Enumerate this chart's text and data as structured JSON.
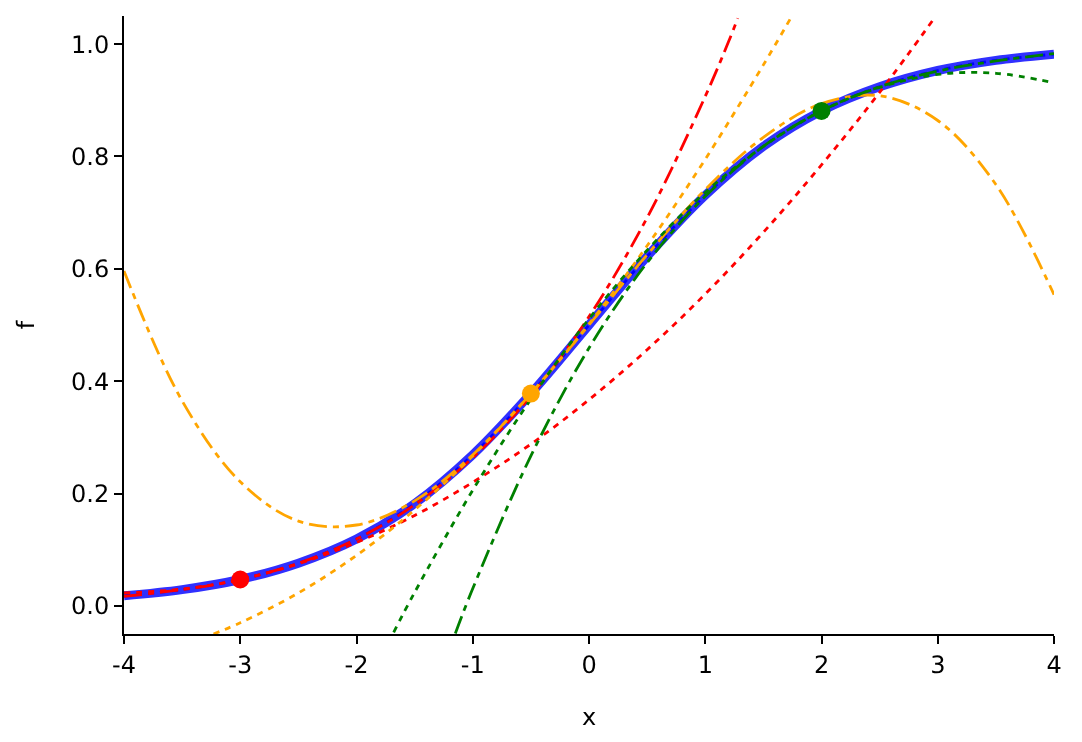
{
  "chart_data": {
    "type": "line",
    "xlabel": "x",
    "ylabel": "f",
    "xlim": [
      -4,
      4
    ],
    "ylim": [
      -0.05,
      1.05
    ],
    "xticks": [
      -4,
      -3,
      -2,
      -1,
      0,
      1,
      2,
      3,
      4
    ],
    "yticks": [
      {
        "value": 0,
        "label": "0.0"
      },
      {
        "value": 0.2,
        "label": "0.2"
      },
      {
        "value": 0.4,
        "label": "0.4"
      },
      {
        "value": 0.6,
        "label": "0.6"
      },
      {
        "value": 0.8,
        "label": "0.8"
      },
      {
        "value": 1,
        "label": "1.0"
      }
    ],
    "marker": "none",
    "series": [
      {
        "color": "#3030ff",
        "line_style": "solid",
        "x": [
          -4,
          -3.5,
          -3,
          -2.5,
          -2,
          -1.5,
          -1,
          -0.5,
          0,
          0.5,
          1,
          1.5,
          2,
          2.5,
          3,
          3.5,
          4
        ],
        "values": [
          0.018,
          0.029,
          0.047,
          0.076,
          0.119,
          0.182,
          0.269,
          0.378,
          0.5,
          0.622,
          0.731,
          0.818,
          0.881,
          0.924,
          0.953,
          0.971,
          0.982
        ]
      },
      {
        "color": "#0000ff",
        "line_style": "dotted",
        "x": [
          -4,
          -3.5,
          -3,
          -2.5,
          -2,
          -1.5,
          -1,
          -0.5,
          0,
          0.5,
          1,
          1.5,
          2,
          2.5,
          3,
          3.5,
          4
        ],
        "values": [
          0.018,
          0.029,
          0.047,
          0.076,
          0.119,
          0.182,
          0.269,
          0.378,
          0.5,
          0.622,
          0.731,
          0.818,
          0.881,
          0.924,
          0.953,
          0.971,
          0.982
        ]
      },
      {
        "color": "#ff0000",
        "line_style": "dotted",
        "x": [
          -4,
          -3.5,
          -3,
          -2.5,
          -2,
          -1.5,
          -1,
          -0.5,
          0,
          0.5,
          1,
          1.5,
          2,
          2.5,
          2.98
        ],
        "values": [
          0.023,
          0.03,
          0.047,
          0.075,
          0.113,
          0.161,
          0.22,
          0.288,
          0.367,
          0.456,
          0.555,
          0.665,
          0.785,
          0.914,
          1.049
        ]
      },
      {
        "color": "#ff0000",
        "line_style": "dashdot",
        "x": [
          -4,
          -3.5,
          -3,
          -2.5,
          -2,
          -1.5,
          -1,
          -0.5,
          0,
          0.5,
          1,
          1.2,
          1.28
        ],
        "values": [
          0.017,
          0.029,
          0.047,
          0.076,
          0.119,
          0.18,
          0.264,
          0.374,
          0.515,
          0.691,
          0.907,
          1.004,
          1.046
        ]
      },
      {
        "color": "#ffa500",
        "line_style": "dotted",
        "x": [
          -3.23,
          -3,
          -2.5,
          -2,
          -1.5,
          -1,
          -0.5,
          0,
          0.5,
          1,
          1.5,
          1.74
        ],
        "values": [
          -0.05,
          -0.03,
          0.023,
          0.09,
          0.171,
          0.267,
          0.378,
          0.502,
          0.641,
          0.795,
          0.963,
          1.048
        ]
      },
      {
        "color": "#ffa500",
        "line_style": "dashdot",
        "x": [
          -4,
          -3.5,
          -3,
          -2.5,
          -2,
          -1.5,
          -1,
          -0.5,
          0,
          0.5,
          1,
          1.5,
          2,
          2.5,
          3,
          3.5,
          4
        ],
        "values": [
          0.596,
          0.365,
          0.221,
          0.151,
          0.144,
          0.187,
          0.269,
          0.378,
          0.5,
          0.625,
          0.741,
          0.834,
          0.894,
          0.908,
          0.864,
          0.75,
          0.554
        ]
      },
      {
        "color": "#008000",
        "line_style": "dotted",
        "x": [
          -1.68,
          -1.5,
          -1,
          -0.5,
          0,
          0.5,
          1,
          1.5,
          2,
          2.5,
          3,
          3.5,
          4
        ],
        "values": [
          -0.047,
          0.024,
          0.206,
          0.368,
          0.511,
          0.633,
          0.736,
          0.818,
          0.881,
          0.923,
          0.946,
          0.948,
          0.931
        ]
      },
      {
        "color": "#008000",
        "line_style": "dashdot",
        "x": [
          -1.15,
          -1,
          -0.5,
          0,
          0.5,
          1,
          1.5,
          2,
          2.5,
          3,
          3.5,
          4
        ],
        "values": [
          -0.049,
          0.031,
          0.267,
          0.459,
          0.611,
          0.729,
          0.818,
          0.881,
          0.924,
          0.952,
          0.97,
          0.983
        ]
      },
      {
        "type": "scatter",
        "marker": "circle",
        "x": [
          -3
        ],
        "values": [
          0.047
        ],
        "color": "#ff0000"
      },
      {
        "type": "scatter",
        "marker": "circle",
        "x": [
          -0.5
        ],
        "values": [
          0.378
        ],
        "color": "#ffa500"
      },
      {
        "type": "scatter",
        "marker": "circle",
        "x": [
          2
        ],
        "values": [
          0.881
        ],
        "color": "#008000"
      }
    ]
  }
}
